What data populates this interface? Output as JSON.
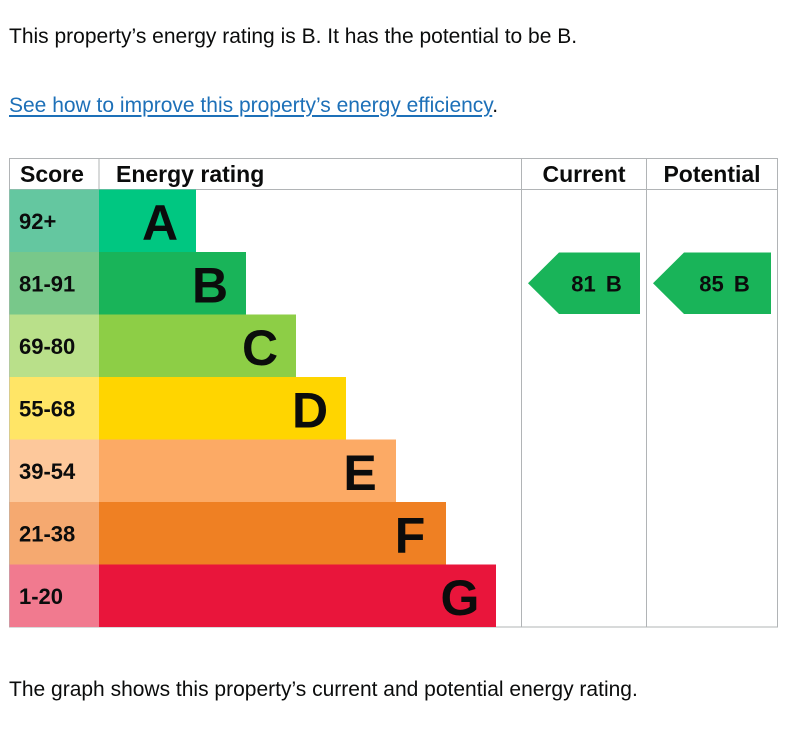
{
  "intro_text": "This property’s energy rating is B. It has the potential to be B.",
  "link_text": "See how to improve this property’s energy efficiency",
  "link_suffix": ".",
  "caption": "The graph shows this property’s current and potential energy rating.",
  "chart_data": {
    "type": "bar",
    "headers": {
      "score": "Score",
      "rating": "Energy rating",
      "current": "Current",
      "potential": "Potential"
    },
    "bands": [
      {
        "letter": "A",
        "range": "92+",
        "color": "#00c781",
        "score_bg": "#64c7a0"
      },
      {
        "letter": "B",
        "range": "81-91",
        "color": "#19b459",
        "score_bg": "#78c88a"
      },
      {
        "letter": "C",
        "range": "69-80",
        "color": "#8dce46",
        "score_bg": "#b9e08a"
      },
      {
        "letter": "D",
        "range": "55-68",
        "color": "#ffd500",
        "score_bg": "#ffe566"
      },
      {
        "letter": "E",
        "range": "39-54",
        "color": "#fcaa65",
        "score_bg": "#fdc89b"
      },
      {
        "letter": "F",
        "range": "21-38",
        "color": "#ef8023",
        "score_bg": "#f5a970"
      },
      {
        "letter": "G",
        "range": "1-20",
        "color": "#e9153b",
        "score_bg": "#f17a8f"
      }
    ],
    "current": {
      "score": 81,
      "band": "B",
      "label": "81 B"
    },
    "potential": {
      "score": 85,
      "band": "B",
      "label": "85 B"
    },
    "border_color": "#b1b4b6"
  }
}
